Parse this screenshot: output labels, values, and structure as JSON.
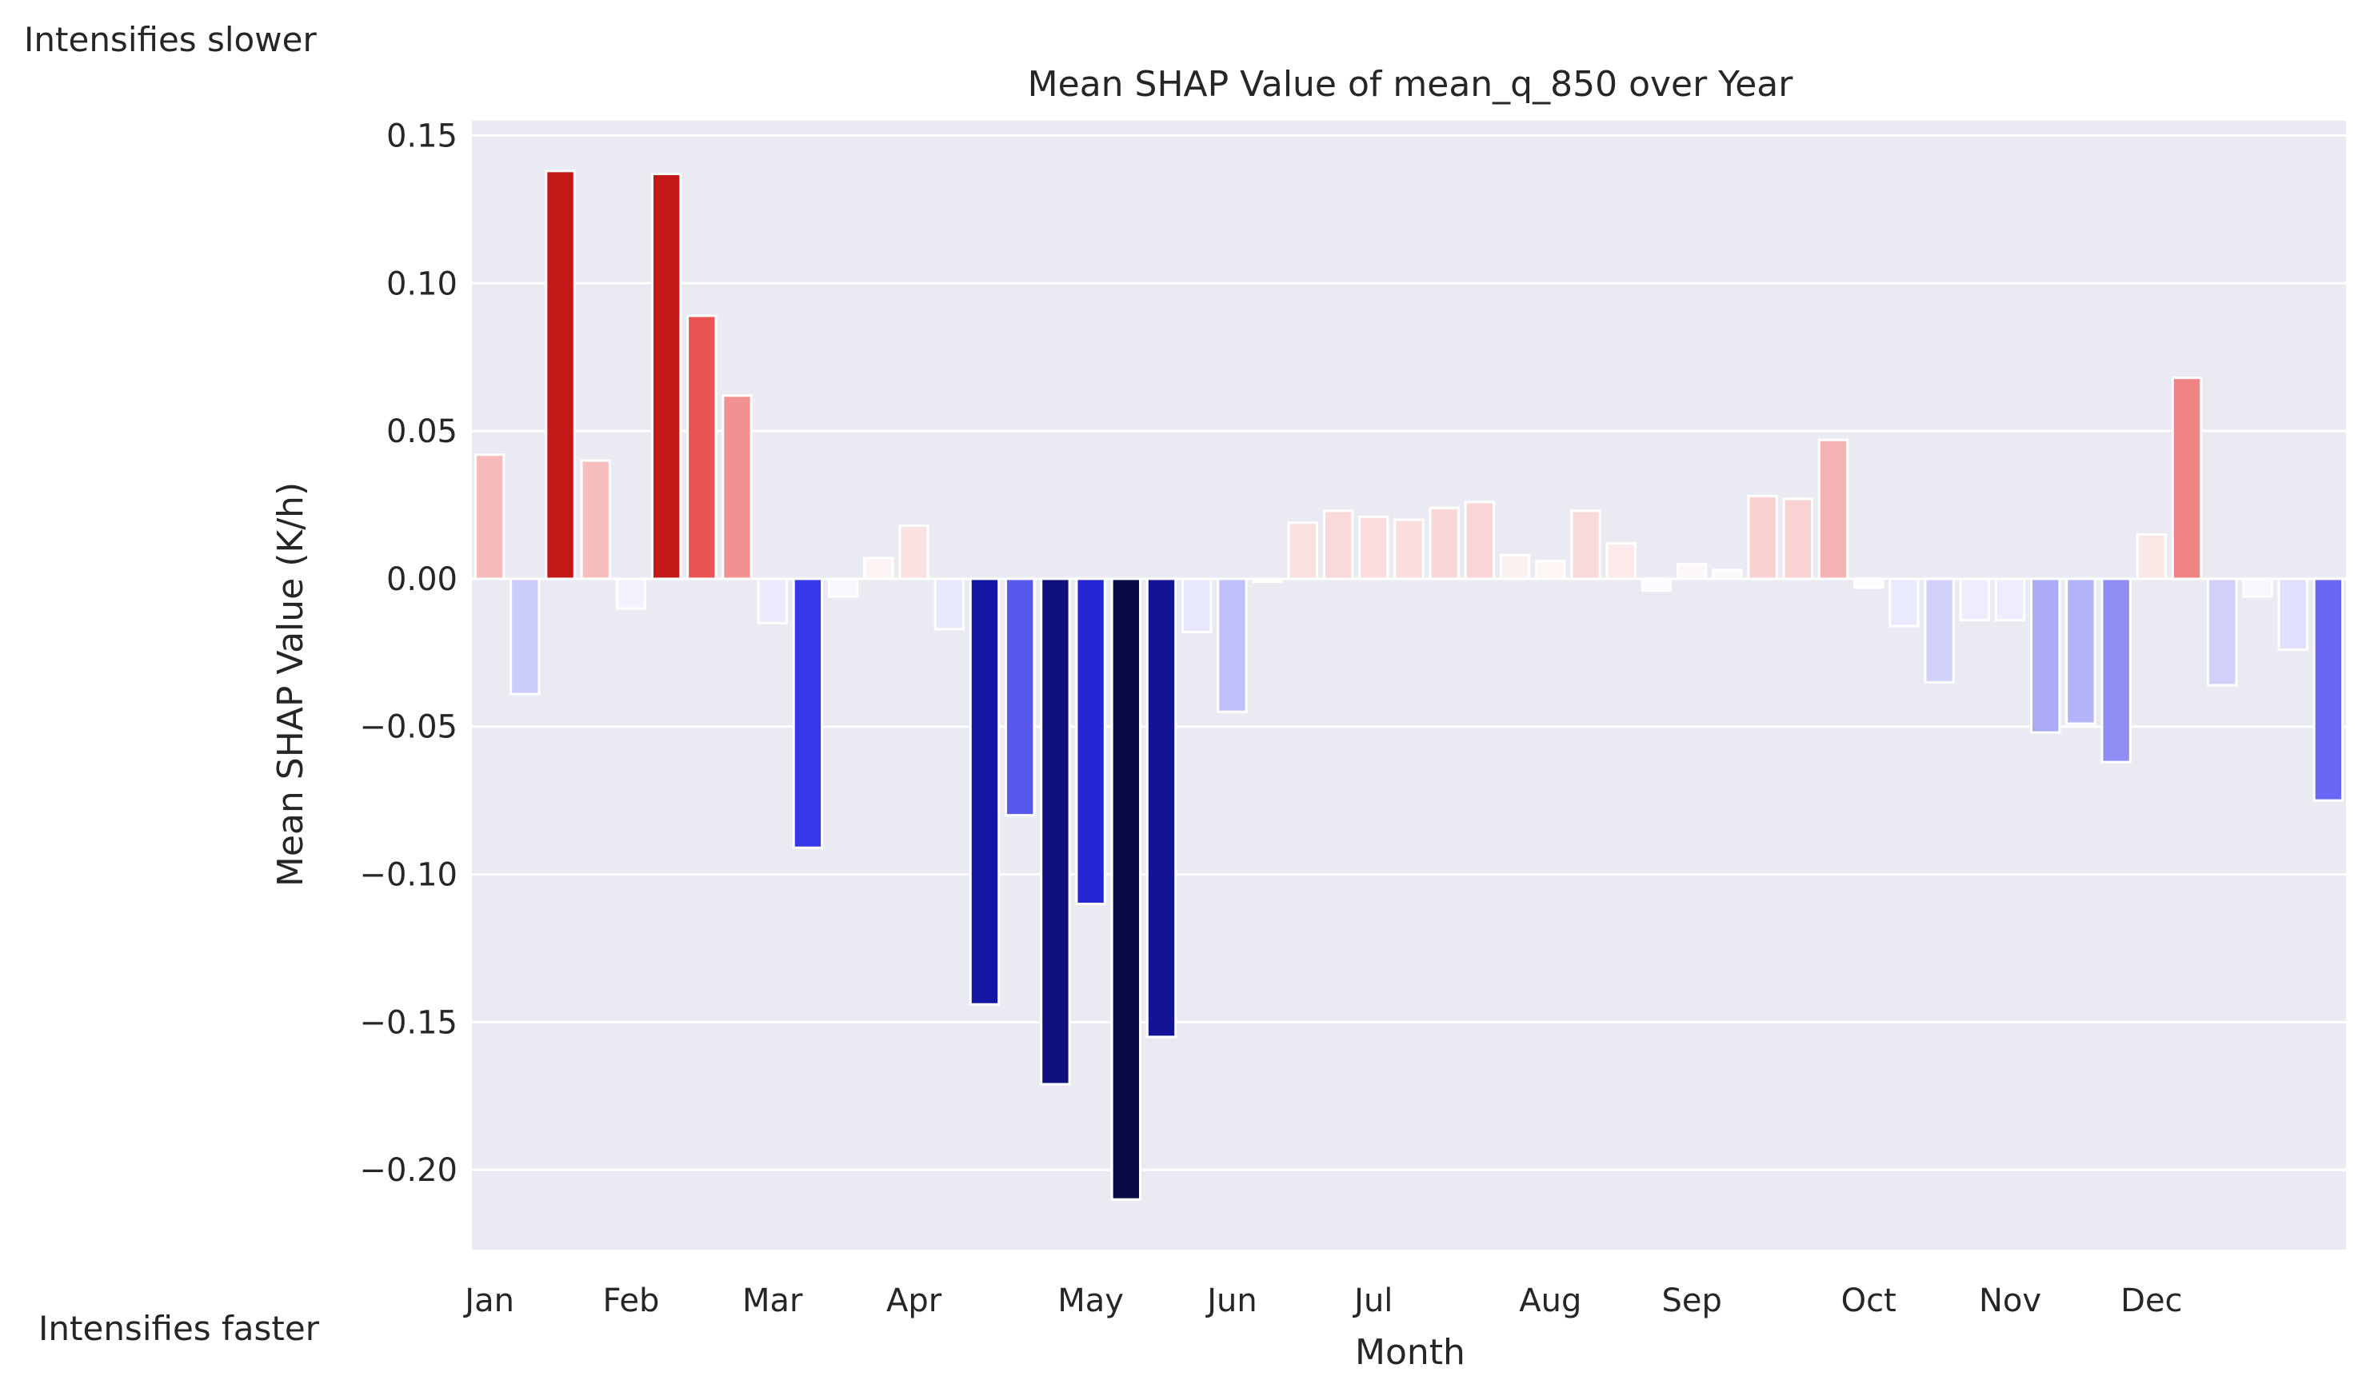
{
  "annotations": {
    "top_left": "Intensifies slower",
    "bottom_left": "Intensifies faster"
  },
  "chart_data": {
    "type": "bar",
    "title": "Mean SHAP Value of mean_q_850 over Year",
    "xlabel": "Month",
    "ylabel": "Mean SHAP Value (K/h)",
    "ylim": [
      -0.227,
      0.155
    ],
    "yticks": [
      0.15,
      0.1,
      0.05,
      0.0,
      -0.05,
      -0.1,
      -0.15,
      -0.2
    ],
    "ytick_labels": [
      "0.15",
      "0.10",
      "0.05",
      "0.00",
      "−0.05",
      "−0.10",
      "−0.15",
      "−0.20"
    ],
    "month_labels": [
      {
        "label": "Jan",
        "index": 0
      },
      {
        "label": "Feb",
        "index": 4
      },
      {
        "label": "Mar",
        "index": 8
      },
      {
        "label": "Apr",
        "index": 12
      },
      {
        "label": "May",
        "index": 17
      },
      {
        "label": "Jun",
        "index": 21
      },
      {
        "label": "Jul",
        "index": 25
      },
      {
        "label": "Aug",
        "index": 30
      },
      {
        "label": "Sep",
        "index": 34
      },
      {
        "label": "Oct",
        "index": 39
      },
      {
        "label": "Nov",
        "index": 43
      },
      {
        "label": "Dec",
        "index": 47
      }
    ],
    "values": [
      0.042,
      -0.039,
      0.138,
      0.04,
      -0.01,
      0.137,
      0.089,
      0.062,
      -0.015,
      -0.091,
      -0.006,
      0.007,
      0.018,
      -0.017,
      -0.144,
      -0.08,
      -0.171,
      -0.11,
      -0.21,
      -0.155,
      -0.018,
      -0.045,
      -0.001,
      0.019,
      0.023,
      0.021,
      0.02,
      0.024,
      0.026,
      0.008,
      0.006,
      0.023,
      0.012,
      -0.004,
      0.005,
      0.003,
      0.028,
      0.027,
      0.047,
      -0.003,
      -0.016,
      -0.035,
      -0.014,
      -0.014,
      -0.052,
      -0.049,
      -0.062,
      0.015,
      0.068,
      -0.036,
      -0.006,
      -0.024,
      -0.075
    ],
    "colormap": "diverging blue-white-red centered at 0",
    "colors": {
      "background": "#eaeaf2",
      "grid": "#ffffff",
      "negative_max": "#0a0a4a",
      "negative_mid": "#1a1ae6",
      "positive_max": "#c41a1a",
      "positive_mid": "#f08080"
    },
    "grid": true,
    "legend": "none"
  }
}
